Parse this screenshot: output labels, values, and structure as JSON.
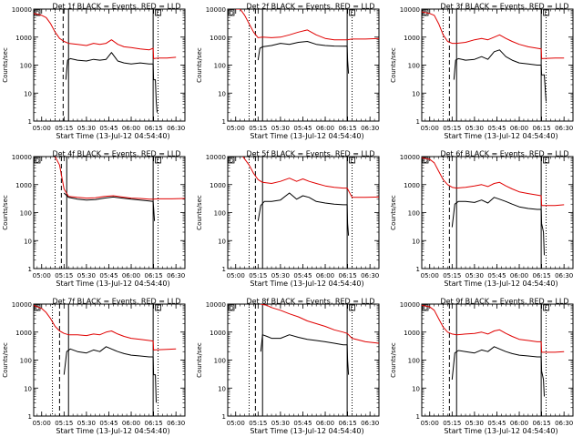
{
  "colors": {
    "events": "#000000",
    "lld": "#e00000",
    "axis": "#000000",
    "background": "#ffffff"
  },
  "shared": {
    "xlabel": "Start Time (13-Jul-12 04:54:40)",
    "ylabel": "Counts/sec",
    "x_ticks": [
      {
        "t": 5.0,
        "label": "05:00"
      },
      {
        "t": 5.25,
        "label": "05:15"
      },
      {
        "t": 5.5,
        "label": "05:30"
      },
      {
        "t": 5.75,
        "label": "05:45"
      },
      {
        "t": 6.0,
        "label": "06:00"
      },
      {
        "t": 6.25,
        "label": "06:15"
      },
      {
        "t": 6.5,
        "label": "06:30"
      }
    ],
    "y_ticks": [
      {
        "v": 1,
        "label": "1"
      },
      {
        "v": 10,
        "label": "10"
      },
      {
        "v": 100,
        "label": "100"
      },
      {
        "v": 1000,
        "label": "1000"
      },
      {
        "v": 10000,
        "label": "10000"
      }
    ],
    "xlim": [
      4.9111,
      6.6
    ],
    "ylim": [
      1,
      10000
    ],
    "yscale": "log",
    "corner_markers": [
      "D",
      "L"
    ]
  },
  "chart_data": [
    {
      "type": "line",
      "title": "Det 1f BLACK = Events, RED = LLD",
      "markers": {
        "dotted": [
          5.15,
          6.3
        ],
        "dashed": [
          5.24
        ],
        "solid": [
          5.3,
          6.245
        ]
      },
      "series": [
        {
          "name": "Events",
          "color": "black",
          "x": [
            5.27,
            5.29,
            5.32,
            5.4,
            5.5,
            5.58,
            5.65,
            5.72,
            5.78,
            5.85,
            5.92,
            6.0,
            6.1,
            6.2,
            6.245,
            6.25,
            6.27,
            6.28,
            6.29
          ],
          "y": [
            30,
            150,
            170,
            150,
            140,
            160,
            150,
            160,
            280,
            140,
            120,
            110,
            120,
            110,
            110,
            30,
            30,
            5,
            2
          ]
        },
        {
          "name": "LLD",
          "color": "red",
          "x": [
            4.91,
            5.0,
            5.05,
            5.1,
            5.15,
            5.2,
            5.25,
            5.3,
            5.4,
            5.5,
            5.58,
            5.65,
            5.72,
            5.78,
            5.85,
            5.92,
            6.0,
            6.1,
            6.2,
            6.245,
            6.25,
            6.3,
            6.4,
            6.5
          ],
          "y": [
            7000,
            6000,
            5000,
            3000,
            1500,
            900,
            700,
            600,
            550,
            500,
            600,
            550,
            600,
            800,
            550,
            450,
            420,
            380,
            350,
            400,
            170,
            180,
            180,
            190
          ]
        }
      ]
    },
    {
      "type": "line",
      "title": "Det 2f BLACK = Events, RED = LLD",
      "markers": {
        "dotted": [
          5.15,
          6.3
        ],
        "dashed": [
          5.22
        ],
        "solid": [
          5.3,
          6.245
        ]
      },
      "series": [
        {
          "name": "Events",
          "color": "black",
          "x": [
            5.25,
            5.27,
            5.3,
            5.4,
            5.5,
            5.6,
            5.7,
            5.8,
            5.9,
            6.0,
            6.1,
            6.2,
            6.245,
            6.25,
            6.26
          ],
          "y": [
            150,
            400,
            450,
            500,
            600,
            550,
            650,
            700,
            550,
            500,
            480,
            470,
            480,
            150,
            50
          ]
        },
        {
          "name": "LLD",
          "color": "red",
          "x": [
            5.0,
            5.05,
            5.1,
            5.15,
            5.2,
            5.25,
            5.3,
            5.4,
            5.5,
            5.6,
            5.7,
            5.8,
            5.9,
            6.0,
            6.1,
            6.2,
            6.245,
            6.3,
            6.45,
            6.6
          ],
          "y": [
            10000,
            10000,
            6000,
            3000,
            1500,
            950,
            1000,
            950,
            1000,
            1200,
            1500,
            1800,
            1200,
            900,
            800,
            800,
            800,
            850,
            850,
            900
          ]
        }
      ]
    },
    {
      "type": "line",
      "title": "Det 3f BLACK = Events, RED = LLD",
      "markers": {
        "dotted": [
          5.15,
          6.3
        ],
        "dashed": [
          5.22
        ],
        "solid": [
          5.3,
          6.245
        ]
      },
      "series": [
        {
          "name": "Events",
          "color": "black",
          "x": [
            5.27,
            5.29,
            5.32,
            5.4,
            5.5,
            5.58,
            5.65,
            5.72,
            5.78,
            5.85,
            5.92,
            6.0,
            6.1,
            6.2,
            6.245,
            6.25,
            6.28,
            6.3
          ],
          "y": [
            30,
            150,
            170,
            150,
            160,
            200,
            160,
            300,
            350,
            200,
            150,
            120,
            110,
            100,
            100,
            45,
            45,
            5
          ]
        },
        {
          "name": "LLD",
          "color": "red",
          "x": [
            4.91,
            5.0,
            5.05,
            5.1,
            5.15,
            5.2,
            5.25,
            5.3,
            5.4,
            5.5,
            5.58,
            5.65,
            5.72,
            5.78,
            5.85,
            5.92,
            6.0,
            6.1,
            6.2,
            6.245,
            6.25,
            6.4,
            6.5
          ],
          "y": [
            8000,
            7000,
            6000,
            3000,
            1200,
            700,
            600,
            600,
            650,
            800,
            900,
            800,
            1000,
            1200,
            900,
            700,
            550,
            450,
            400,
            380,
            170,
            180,
            180
          ]
        }
      ]
    },
    {
      "type": "line",
      "title": "Det 4f BLACK = Events, RED = LLD",
      "markers": {
        "dotted": [
          5.15,
          6.3
        ],
        "dashed": [
          5.22
        ],
        "solid": [
          5.28,
          6.245
        ]
      },
      "series": [
        {
          "name": "Events",
          "color": "black",
          "x": [
            5.25,
            5.3,
            5.4,
            5.5,
            5.6,
            5.7,
            5.8,
            5.9,
            6.0,
            6.1,
            6.2,
            6.245,
            6.25,
            6.26
          ],
          "y": [
            500,
            350,
            300,
            280,
            290,
            330,
            360,
            330,
            300,
            280,
            260,
            250,
            150,
            50
          ]
        },
        {
          "name": "LLD",
          "color": "red",
          "x": [
            5.15,
            5.2,
            5.25,
            5.3,
            5.4,
            5.5,
            5.6,
            5.7,
            5.8,
            5.9,
            6.0,
            6.1,
            6.2,
            6.245,
            6.3,
            6.45,
            6.6
          ],
          "y": [
            10000,
            5000,
            700,
            380,
            350,
            330,
            340,
            380,
            400,
            360,
            330,
            320,
            300,
            300,
            310,
            310,
            320
          ]
        }
      ]
    },
    {
      "type": "line",
      "title": "Det 5f BLACK = Events, RED = LLD",
      "markers": {
        "dotted": [
          5.15,
          6.3
        ],
        "dashed": [
          5.22
        ],
        "solid": [
          5.3,
          6.245
        ]
      },
      "series": [
        {
          "name": "Events",
          "color": "black",
          "x": [
            5.25,
            5.28,
            5.32,
            5.4,
            5.5,
            5.6,
            5.68,
            5.75,
            5.82,
            5.9,
            6.0,
            6.1,
            6.2,
            6.245,
            6.25,
            6.26
          ],
          "y": [
            50,
            180,
            250,
            250,
            280,
            500,
            300,
            400,
            350,
            250,
            220,
            200,
            190,
            190,
            40,
            15
          ]
        },
        {
          "name": "LLD",
          "color": "red",
          "x": [
            5.08,
            5.15,
            5.2,
            5.25,
            5.3,
            5.4,
            5.5,
            5.6,
            5.68,
            5.75,
            5.82,
            5.9,
            6.0,
            6.1,
            6.2,
            6.245,
            6.3,
            6.45,
            6.6
          ],
          "y": [
            10000,
            5000,
            2500,
            1500,
            1200,
            1100,
            1300,
            1700,
            1300,
            1600,
            1300,
            1100,
            900,
            800,
            750,
            750,
            350,
            350,
            360
          ]
        }
      ]
    },
    {
      "type": "line",
      "title": "Det 6f BLACK = Events, RED = LLD",
      "markers": {
        "dotted": [
          5.15,
          6.3
        ],
        "dashed": [
          5.22
        ],
        "solid": [
          5.3,
          6.245
        ]
      },
      "series": [
        {
          "name": "Events",
          "color": "black",
          "x": [
            5.25,
            5.28,
            5.32,
            5.4,
            5.5,
            5.58,
            5.65,
            5.72,
            5.78,
            5.85,
            5.92,
            6.0,
            6.1,
            6.2,
            6.245,
            6.25,
            6.27,
            6.28
          ],
          "y": [
            30,
            200,
            250,
            250,
            230,
            280,
            220,
            350,
            300,
            250,
            200,
            160,
            140,
            130,
            130,
            40,
            20,
            3
          ]
        },
        {
          "name": "LLD",
          "color": "red",
          "x": [
            4.91,
            5.0,
            5.05,
            5.1,
            5.15,
            5.2,
            5.25,
            5.3,
            5.4,
            5.5,
            5.58,
            5.65,
            5.72,
            5.78,
            5.85,
            5.92,
            6.0,
            6.1,
            6.2,
            6.245,
            6.25,
            6.4,
            6.5
          ],
          "y": [
            9000,
            8000,
            6000,
            3000,
            1500,
            1000,
            800,
            750,
            800,
            900,
            1000,
            850,
            1100,
            1200,
            900,
            700,
            550,
            480,
            420,
            400,
            180,
            180,
            190
          ]
        }
      ]
    },
    {
      "type": "line",
      "title": "Det 7f BLACK = Events, RED = LLD",
      "markers": {
        "dotted": [
          5.12,
          6.3
        ],
        "dashed": [
          5.2
        ],
        "solid": [
          5.3,
          6.245
        ]
      },
      "series": [
        {
          "name": "Events",
          "color": "black",
          "x": [
            5.25,
            5.28,
            5.32,
            5.4,
            5.5,
            5.58,
            5.65,
            5.72,
            5.78,
            5.85,
            5.92,
            6.0,
            6.1,
            6.2,
            6.245,
            6.25,
            6.27,
            6.28
          ],
          "y": [
            30,
            200,
            250,
            200,
            180,
            230,
            200,
            300,
            250,
            200,
            170,
            150,
            140,
            130,
            130,
            30,
            30,
            3
          ]
        },
        {
          "name": "LLD",
          "color": "red",
          "x": [
            4.91,
            5.0,
            5.05,
            5.1,
            5.15,
            5.2,
            5.25,
            5.3,
            5.4,
            5.5,
            5.58,
            5.65,
            5.72,
            5.78,
            5.85,
            5.92,
            6.0,
            6.1,
            6.2,
            6.245,
            6.25,
            6.4,
            6.5
          ],
          "y": [
            9000,
            7000,
            5000,
            3000,
            1600,
            1100,
            900,
            800,
            800,
            750,
            850,
            800,
            1000,
            1100,
            850,
            700,
            600,
            550,
            500,
            480,
            230,
            240,
            250
          ]
        }
      ]
    },
    {
      "type": "line",
      "title": "Det 8f BLACK = Events, RED = LLD",
      "markers": {
        "dotted": [
          5.15,
          6.3
        ],
        "dashed": [
          5.22
        ],
        "solid": [
          5.3,
          6.245
        ]
      },
      "series": [
        {
          "name": "Events",
          "color": "black",
          "x": [
            5.28,
            5.3,
            5.35,
            5.4,
            5.5,
            5.6,
            5.7,
            5.8,
            5.9,
            6.0,
            6.1,
            6.2,
            6.245,
            6.25,
            6.26
          ],
          "y": [
            200,
            800,
            700,
            600,
            600,
            800,
            650,
            550,
            500,
            450,
            400,
            350,
            350,
            100,
            30
          ]
        },
        {
          "name": "LLD",
          "color": "red",
          "x": [
            5.28,
            5.35,
            5.4,
            5.5,
            5.6,
            5.7,
            5.8,
            5.9,
            6.0,
            6.1,
            6.2,
            6.245,
            6.3,
            6.45,
            6.6
          ],
          "y": [
            10000,
            9000,
            7500,
            6000,
            4500,
            3500,
            2500,
            2000,
            1600,
            1200,
            1000,
            900,
            600,
            450,
            400
          ]
        }
      ]
    },
    {
      "type": "line",
      "title": "Det 9f BLACK = Events, RED = LLD",
      "markers": {
        "dotted": [
          5.15,
          6.3
        ],
        "dashed": [
          5.22
        ],
        "solid": [
          5.3,
          6.245
        ]
      },
      "series": [
        {
          "name": "Events",
          "color": "black",
          "x": [
            5.25,
            5.28,
            5.32,
            5.4,
            5.5,
            5.58,
            5.65,
            5.72,
            5.78,
            5.85,
            5.92,
            6.0,
            6.1,
            6.2,
            6.245,
            6.25,
            6.27,
            6.28
          ],
          "y": [
            20,
            180,
            220,
            200,
            180,
            230,
            200,
            300,
            250,
            200,
            170,
            150,
            140,
            130,
            130,
            40,
            20,
            5
          ]
        },
        {
          "name": "LLD",
          "color": "red",
          "x": [
            4.91,
            5.0,
            5.05,
            5.1,
            5.15,
            5.2,
            5.25,
            5.3,
            5.4,
            5.5,
            5.58,
            5.65,
            5.72,
            5.78,
            5.85,
            5.92,
            6.0,
            6.1,
            6.2,
            6.245,
            6.25,
            6.4,
            6.5
          ],
          "y": [
            9000,
            8000,
            6000,
            3000,
            1500,
            1000,
            850,
            800,
            850,
            900,
            1000,
            850,
            1100,
            1200,
            900,
            700,
            550,
            500,
            450,
            450,
            190,
            190,
            200
          ]
        }
      ]
    }
  ]
}
